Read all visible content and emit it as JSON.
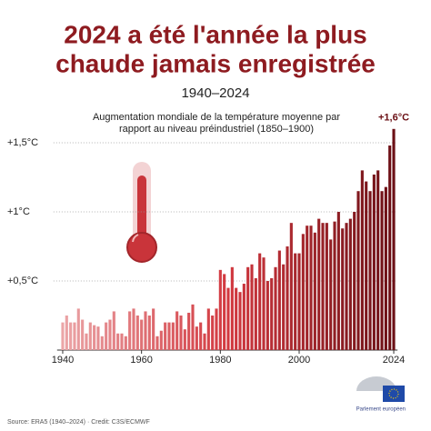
{
  "chart_data": {
    "type": "bar",
    "title": [
      "2024 a été l'année la plus",
      "chaude jamais enregistrée"
    ],
    "subtitle": "1940–2024",
    "annotation": [
      "Augmentation mondiale de la température moyenne par",
      "rapport au niveau préindustriel (1850–1900)"
    ],
    "last_label": "+1,6°C",
    "source": "Source: ERA5 (1940–2024) · Credit: C3S/ECMWF",
    "logo": "Parlement européen",
    "x": [
      1940,
      1941,
      1942,
      1943,
      1944,
      1945,
      1946,
      1947,
      1948,
      1949,
      1950,
      1951,
      1952,
      1953,
      1954,
      1955,
      1956,
      1957,
      1958,
      1959,
      1960,
      1961,
      1962,
      1963,
      1964,
      1965,
      1966,
      1967,
      1968,
      1969,
      1970,
      1971,
      1972,
      1973,
      1974,
      1975,
      1976,
      1977,
      1978,
      1979,
      1980,
      1981,
      1982,
      1983,
      1984,
      1985,
      1986,
      1987,
      1988,
      1989,
      1990,
      1991,
      1992,
      1993,
      1994,
      1995,
      1996,
      1997,
      1998,
      1999,
      2000,
      2001,
      2002,
      2003,
      2004,
      2005,
      2006,
      2007,
      2008,
      2009,
      2010,
      2011,
      2012,
      2013,
      2014,
      2015,
      2016,
      2017,
      2018,
      2019,
      2020,
      2021,
      2022,
      2023,
      2024
    ],
    "values": [
      0.2,
      0.25,
      0.2,
      0.2,
      0.3,
      0.22,
      0.12,
      0.2,
      0.18,
      0.17,
      0.1,
      0.2,
      0.22,
      0.28,
      0.12,
      0.12,
      0.1,
      0.28,
      0.3,
      0.25,
      0.22,
      0.28,
      0.25,
      0.3,
      0.1,
      0.14,
      0.2,
      0.2,
      0.2,
      0.28,
      0.25,
      0.15,
      0.27,
      0.33,
      0.17,
      0.2,
      0.12,
      0.3,
      0.25,
      0.3,
      0.58,
      0.55,
      0.45,
      0.6,
      0.45,
      0.42,
      0.48,
      0.6,
      0.62,
      0.52,
      0.7,
      0.67,
      0.5,
      0.52,
      0.6,
      0.72,
      0.62,
      0.75,
      0.92,
      0.7,
      0.7,
      0.84,
      0.9,
      0.9,
      0.85,
      0.95,
      0.92,
      0.92,
      0.8,
      0.93,
      1.0,
      0.88,
      0.92,
      0.95,
      1.0,
      1.15,
      1.3,
      1.22,
      1.15,
      1.27,
      1.3,
      1.15,
      1.18,
      1.48,
      1.6
    ],
    "colors": [
      "#eba6a8",
      "#d2383f",
      "#6a0f14"
    ],
    "xlim": [
      1939.5,
      2024.5
    ],
    "xticks": [
      1940,
      1960,
      1980,
      2000,
      2024
    ],
    "ylim": [
      0,
      1.65
    ],
    "yticks": [
      {
        "value": 0.5,
        "label": "+0,5°C"
      },
      {
        "value": 1,
        "label": "+1°C"
      },
      {
        "value": 1.5,
        "label": "+1,5°C"
      }
    ],
    "grid": true
  }
}
